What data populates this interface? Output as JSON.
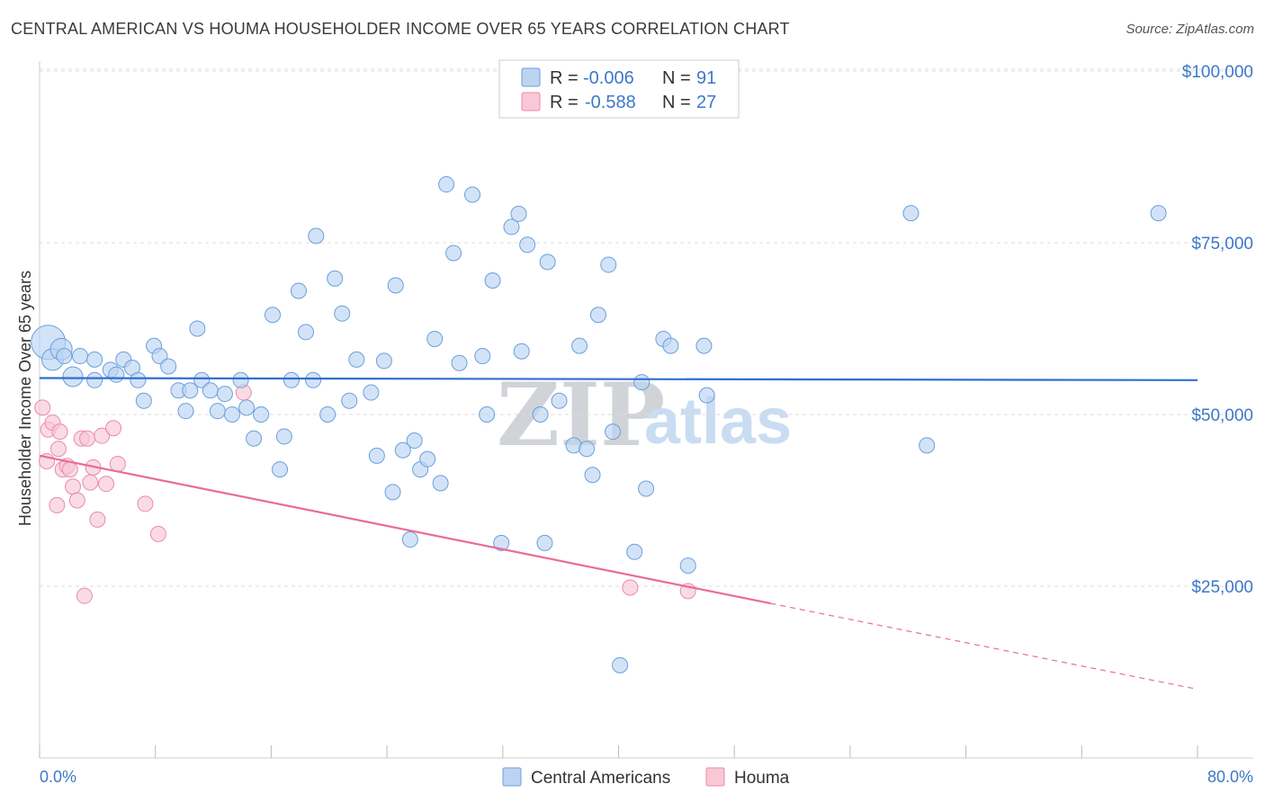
{
  "title": "CENTRAL AMERICAN VS HOUMA HOUSEHOLDER INCOME OVER 65 YEARS CORRELATION CHART",
  "source": "Source: ZipAtlas.com",
  "watermark": {
    "zip": "ZIP",
    "atlas": "atlas"
  },
  "colors": {
    "blue_fill": "#bcd4f2",
    "blue_stroke": "#6a9fdc",
    "blue_line": "#2e6fd0",
    "pink_fill": "#f8c8d6",
    "pink_stroke": "#ec8aaa",
    "pink_line": "#e86c98",
    "grid": "#dddddd",
    "tick": "#3d78c8"
  },
  "legend": {
    "rows": [
      {
        "r_label": "R =",
        "r_value": "-0.006",
        "n_label": "N =",
        "n_value": "91"
      },
      {
        "r_label": "R =",
        "r_value": "-0.588",
        "n_label": "N =",
        "n_value": "27"
      }
    ]
  },
  "chart_data": {
    "type": "scatter",
    "title": "CENTRAL AMERICAN VS HOUMA HOUSEHOLDER INCOME OVER 65 YEARS CORRELATION CHART",
    "xlabel": "",
    "ylabel": "Householder Income Over 65 years",
    "xlim": [
      0,
      80
    ],
    "ylim": [
      0,
      105000
    ],
    "x_tick_labels": [
      "0.0%",
      "80.0%"
    ],
    "y_ticks": [
      25000,
      50000,
      75000,
      100000
    ],
    "y_tick_labels": [
      "$25,000",
      "$50,000",
      "$75,000",
      "$100,000"
    ],
    "series": [
      {
        "name": "Central Americans",
        "r": -0.006,
        "n": 91,
        "trend": {
          "x": [
            0,
            80
          ],
          "y": [
            55300,
            55000
          ]
        },
        "points": [
          [
            0.6,
            60500,
            3
          ],
          [
            0.9,
            58000,
            2
          ],
          [
            1.5,
            59500,
            2
          ],
          [
            1.7,
            58500,
            1
          ],
          [
            2.3,
            55500,
            1.5
          ],
          [
            2.8,
            58500,
            1
          ],
          [
            3.8,
            58000,
            1
          ],
          [
            3.8,
            55000,
            1
          ],
          [
            4.9,
            56500,
            1
          ],
          [
            5.3,
            55800,
            1
          ],
          [
            5.8,
            58000,
            1
          ],
          [
            6.4,
            56800,
            1
          ],
          [
            6.8,
            55000,
            1
          ],
          [
            7.2,
            52000,
            1
          ],
          [
            7.9,
            60000,
            1
          ],
          [
            8.3,
            58500,
            1
          ],
          [
            8.9,
            57000,
            1
          ],
          [
            9.6,
            53500,
            1
          ],
          [
            10.1,
            50500,
            1
          ],
          [
            10.4,
            53500,
            1
          ],
          [
            10.9,
            62500,
            1
          ],
          [
            11.2,
            55000,
            1
          ],
          [
            11.8,
            53500,
            1
          ],
          [
            12.3,
            50500,
            1
          ],
          [
            12.8,
            53000,
            1
          ],
          [
            13.3,
            50000,
            1
          ],
          [
            13.9,
            55000,
            1
          ],
          [
            14.3,
            51000,
            1
          ],
          [
            14.8,
            46500,
            1
          ],
          [
            15.3,
            50000,
            1
          ],
          [
            16.1,
            64500,
            1
          ],
          [
            16.6,
            42000,
            1
          ],
          [
            16.9,
            46800,
            1
          ],
          [
            17.4,
            55000,
            1
          ],
          [
            17.9,
            68000,
            1
          ],
          [
            18.4,
            62000,
            1
          ],
          [
            18.9,
            55000,
            1
          ],
          [
            19.1,
            76000,
            1
          ],
          [
            19.9,
            50000,
            1
          ],
          [
            20.4,
            69800,
            1
          ],
          [
            20.9,
            64700,
            1
          ],
          [
            21.4,
            52000,
            1
          ],
          [
            21.9,
            58000,
            1
          ],
          [
            22.9,
            53200,
            1
          ],
          [
            23.3,
            44000,
            1
          ],
          [
            23.8,
            57800,
            1
          ],
          [
            24.4,
            38700,
            1
          ],
          [
            24.6,
            68800,
            1
          ],
          [
            25.1,
            44800,
            1
          ],
          [
            25.6,
            31800,
            1
          ],
          [
            25.9,
            46200,
            1
          ],
          [
            26.3,
            42000,
            1
          ],
          [
            26.8,
            43500,
            1
          ],
          [
            27.3,
            61000,
            1
          ],
          [
            27.7,
            40000,
            1
          ],
          [
            28.1,
            83500,
            1
          ],
          [
            28.6,
            73500,
            1
          ],
          [
            29.0,
            57500,
            1
          ],
          [
            29.9,
            82000,
            1
          ],
          [
            30.6,
            58500,
            1
          ],
          [
            30.9,
            50000,
            1
          ],
          [
            31.3,
            69500,
            1
          ],
          [
            31.9,
            31300,
            1
          ],
          [
            32.6,
            77300,
            1
          ],
          [
            33.1,
            79200,
            1
          ],
          [
            33.3,
            59200,
            1
          ],
          [
            33.7,
            74700,
            1
          ],
          [
            34.6,
            50000,
            1
          ],
          [
            34.9,
            31300,
            1
          ],
          [
            35.1,
            72200,
            1
          ],
          [
            35.9,
            52000,
            1
          ],
          [
            36.9,
            45500,
            1
          ],
          [
            37.3,
            60000,
            1
          ],
          [
            37.8,
            45000,
            1
          ],
          [
            38.2,
            41200,
            1
          ],
          [
            38.6,
            64500,
            1
          ],
          [
            39.3,
            71800,
            1
          ],
          [
            39.6,
            47500,
            1
          ],
          [
            40.1,
            13500,
            1
          ],
          [
            41.1,
            30000,
            1
          ],
          [
            41.6,
            54700,
            1
          ],
          [
            41.9,
            39200,
            1
          ],
          [
            43.1,
            61000,
            1
          ],
          [
            43.6,
            60000,
            1
          ],
          [
            44.8,
            28000,
            1
          ],
          [
            45.9,
            60000,
            1
          ],
          [
            46.1,
            52800,
            1
          ],
          [
            60.2,
            79300,
            1
          ],
          [
            61.3,
            45500,
            1
          ],
          [
            77.3,
            79300,
            1
          ]
        ]
      },
      {
        "name": "Houma",
        "r": -0.588,
        "n": 27,
        "trend": {
          "x": [
            0,
            50.5
          ],
          "y": [
            44000,
            22500
          ]
        },
        "trend_dashed": {
          "x": [
            50.5,
            80
          ],
          "y": [
            22500,
            10000
          ]
        },
        "points": [
          [
            0.2,
            51000
          ],
          [
            0.5,
            43200
          ],
          [
            0.6,
            47800
          ],
          [
            0.9,
            48800
          ],
          [
            1.2,
            36800
          ],
          [
            1.4,
            47500
          ],
          [
            1.6,
            42000
          ],
          [
            1.9,
            42500
          ],
          [
            2.1,
            42000
          ],
          [
            2.3,
            39500
          ],
          [
            2.6,
            37500
          ],
          [
            2.9,
            46500
          ],
          [
            3.1,
            23600
          ],
          [
            3.3,
            46500
          ],
          [
            3.5,
            40100
          ],
          [
            3.7,
            42300
          ],
          [
            4.0,
            34700
          ],
          [
            4.3,
            46900
          ],
          [
            4.6,
            39900
          ],
          [
            5.1,
            48000
          ],
          [
            5.4,
            42800
          ],
          [
            7.3,
            37000
          ],
          [
            8.2,
            32600
          ],
          [
            14.1,
            53200
          ],
          [
            40.8,
            24800
          ],
          [
            44.8,
            24300
          ],
          [
            1.3,
            45000
          ]
        ]
      }
    ]
  },
  "bottom_legend": [
    "Central Americans",
    "Houma"
  ]
}
